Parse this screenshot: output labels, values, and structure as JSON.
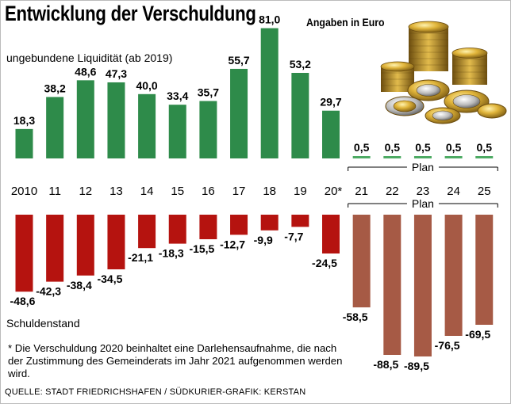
{
  "title": "Entwicklung der Verschuldung",
  "unit_note": "Angaben in Euro",
  "footnote": "* Die Verschuldung 2020 beinhaltet eine Darlehensaufnahme, die nach der Zustimmung des Gemeinderats im Jahr 2021 aufgenommen werden wird.",
  "source": "QUELLE: STADT FRIEDRICHSHAFEN  / SÜDKURIER-GRAFIK: KERSTAN",
  "colors": {
    "liquidity": "#2e8b4a",
    "liquidity_plan": "#4daa63",
    "debt": "#b5130f",
    "debt_plan": "#a65a45"
  },
  "chart_data": {
    "type": "bar",
    "categories": [
      "2010",
      "11",
      "12",
      "13",
      "14",
      "15",
      "16",
      "17",
      "18",
      "19",
      "20*",
      "21",
      "22",
      "23",
      "24",
      "25"
    ],
    "plan_label": "Plan",
    "plan_from_index": 11,
    "series": [
      {
        "name": "ungebundene Liquidität (ab 2019)",
        "values": [
          18.3,
          38.2,
          48.6,
          47.3,
          40.0,
          33.4,
          35.7,
          55.7,
          81.0,
          53.2,
          29.7,
          0.5,
          0.5,
          0.5,
          0.5,
          0.5
        ],
        "labels": [
          "18,3",
          "38,2",
          "48,6",
          "47,3",
          "40,0",
          "33,4",
          "35,7",
          "55,7",
          "81,0",
          "53,2",
          "29,7",
          "0,5",
          "0,5",
          "0,5",
          "0,5",
          "0,5"
        ]
      },
      {
        "name": "Schuldenstand",
        "values": [
          -48.6,
          -42.3,
          -38.4,
          -34.5,
          -21.1,
          -18.3,
          -15.5,
          -12.7,
          -9.9,
          -7.7,
          -24.5,
          -58.5,
          -88.5,
          -89.5,
          -76.5,
          -69.5
        ],
        "labels": [
          "-48,6",
          "-42,3",
          "-38,4",
          "-34,5",
          "-21,1",
          "-18,3",
          "-15,5",
          "-12,7",
          "-9,9",
          "-7,7",
          "-24,5",
          "-58,5",
          "-88,5",
          "-89,5",
          "-76,5",
          "-69,5"
        ]
      }
    ]
  }
}
